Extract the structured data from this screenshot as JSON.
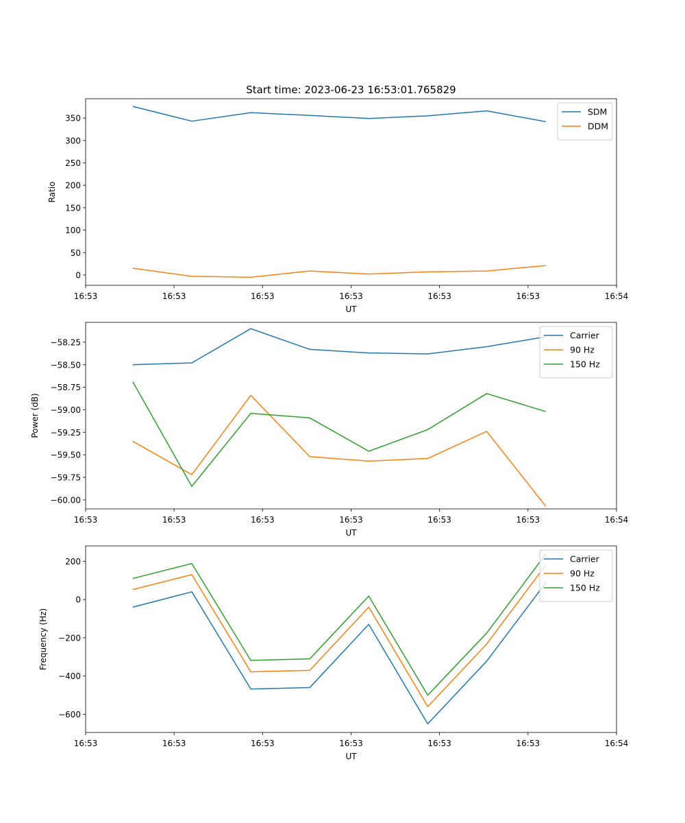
{
  "figure": {
    "title": "Start time: 2023-06-23 16:53:01.765829"
  },
  "chart_data": [
    {
      "type": "line",
      "title": "Start time: 2023-06-23 16:53:01.765829",
      "xlabel": "UT",
      "ylabel": "Ratio",
      "x": [
        1,
        2,
        3,
        4,
        5,
        6,
        7,
        8
      ],
      "xlim": [
        0.2,
        9.2
      ],
      "x_ticks": [
        {
          "pos": 0.2,
          "label": "16:53"
        },
        {
          "pos": 1.7,
          "label": "16:53"
        },
        {
          "pos": 3.2,
          "label": "16:53"
        },
        {
          "pos": 4.7,
          "label": "16:53"
        },
        {
          "pos": 6.2,
          "label": "16:53"
        },
        {
          "pos": 7.7,
          "label": "16:53"
        },
        {
          "pos": 9.2,
          "label": "16:54"
        }
      ],
      "ylim": [
        -23,
        393
      ],
      "y_ticks": [
        0,
        50,
        100,
        150,
        200,
        250,
        300,
        350
      ],
      "y_tick_labels": [
        "0",
        "50",
        "100",
        "150",
        "200",
        "250",
        "300",
        "350"
      ],
      "grid": false,
      "legend": "upper right",
      "series": [
        {
          "name": "SDM",
          "color": "#1f77b4",
          "values": [
            376,
            343,
            362,
            356,
            349,
            355,
            366,
            342
          ]
        },
        {
          "name": "DDM",
          "color": "#ff7f0e",
          "values": [
            15,
            -3,
            -5,
            9,
            2,
            7,
            9,
            21
          ]
        }
      ]
    },
    {
      "type": "line",
      "xlabel": "UT",
      "ylabel": "Power (dB)",
      "x": [
        1,
        2,
        3,
        4,
        5,
        6,
        7,
        8
      ],
      "xlim": [
        0.2,
        9.2
      ],
      "x_ticks": [
        {
          "pos": 0.2,
          "label": "16:53"
        },
        {
          "pos": 1.7,
          "label": "16:53"
        },
        {
          "pos": 3.2,
          "label": "16:53"
        },
        {
          "pos": 4.7,
          "label": "16:53"
        },
        {
          "pos": 6.2,
          "label": "16:53"
        },
        {
          "pos": 7.7,
          "label": "16:53"
        },
        {
          "pos": 9.2,
          "label": "16:54"
        }
      ],
      "ylim": [
        -60.1,
        -58.03
      ],
      "y_ticks": [
        -60.0,
        -59.75,
        -59.5,
        -59.25,
        -59.0,
        -58.75,
        -58.5,
        -58.25
      ],
      "y_tick_labels": [
        "−60.00",
        "−59.75",
        "−59.50",
        "−59.25",
        "−59.00",
        "−58.75",
        "−58.50",
        "−58.25"
      ],
      "grid": false,
      "legend": "upper right",
      "series": [
        {
          "name": "Carrier",
          "color": "#1f77b4",
          "values": [
            -58.5,
            -58.48,
            -58.1,
            -58.33,
            -58.37,
            -58.38,
            -58.3,
            -58.19
          ]
        },
        {
          "name": "90 Hz",
          "color": "#ff7f0e",
          "values": [
            -59.35,
            -59.72,
            -58.84,
            -59.52,
            -59.57,
            -59.54,
            -59.24,
            -60.07
          ]
        },
        {
          "name": "150 Hz",
          "color": "#2ca02c",
          "values": [
            -58.69,
            -59.85,
            -59.04,
            -59.09,
            -59.46,
            -59.22,
            -58.82,
            -59.02
          ]
        }
      ]
    },
    {
      "type": "line",
      "xlabel": "UT",
      "ylabel": "Frequency (Hz)",
      "x": [
        1,
        2,
        3,
        4,
        5,
        6,
        7,
        8
      ],
      "xlim": [
        0.2,
        9.2
      ],
      "x_ticks": [
        {
          "pos": 0.2,
          "label": "16:53"
        },
        {
          "pos": 1.7,
          "label": "16:53"
        },
        {
          "pos": 3.2,
          "label": "16:53"
        },
        {
          "pos": 4.7,
          "label": "16:53"
        },
        {
          "pos": 6.2,
          "label": "16:53"
        },
        {
          "pos": 7.7,
          "label": "16:53"
        },
        {
          "pos": 9.2,
          "label": "16:54"
        }
      ],
      "ylim": [
        -695,
        280
      ],
      "y_ticks": [
        -600,
        -400,
        -200,
        0,
        200
      ],
      "y_tick_labels": [
        "−600",
        "−400",
        "−200",
        "0",
        "200"
      ],
      "grid": false,
      "legend": "upper right",
      "series": [
        {
          "name": "Carrier",
          "color": "#1f77b4",
          "values": [
            -40,
            40,
            -468,
            -460,
            -130,
            -650,
            -322,
            87
          ]
        },
        {
          "name": "90 Hz",
          "color": "#ff7f0e",
          "values": [
            52,
            130,
            -378,
            -370,
            -40,
            -560,
            -232,
            180
          ]
        },
        {
          "name": "150 Hz",
          "color": "#2ca02c",
          "values": [
            110,
            188,
            -318,
            -310,
            18,
            -500,
            -175,
            237
          ]
        }
      ]
    }
  ]
}
